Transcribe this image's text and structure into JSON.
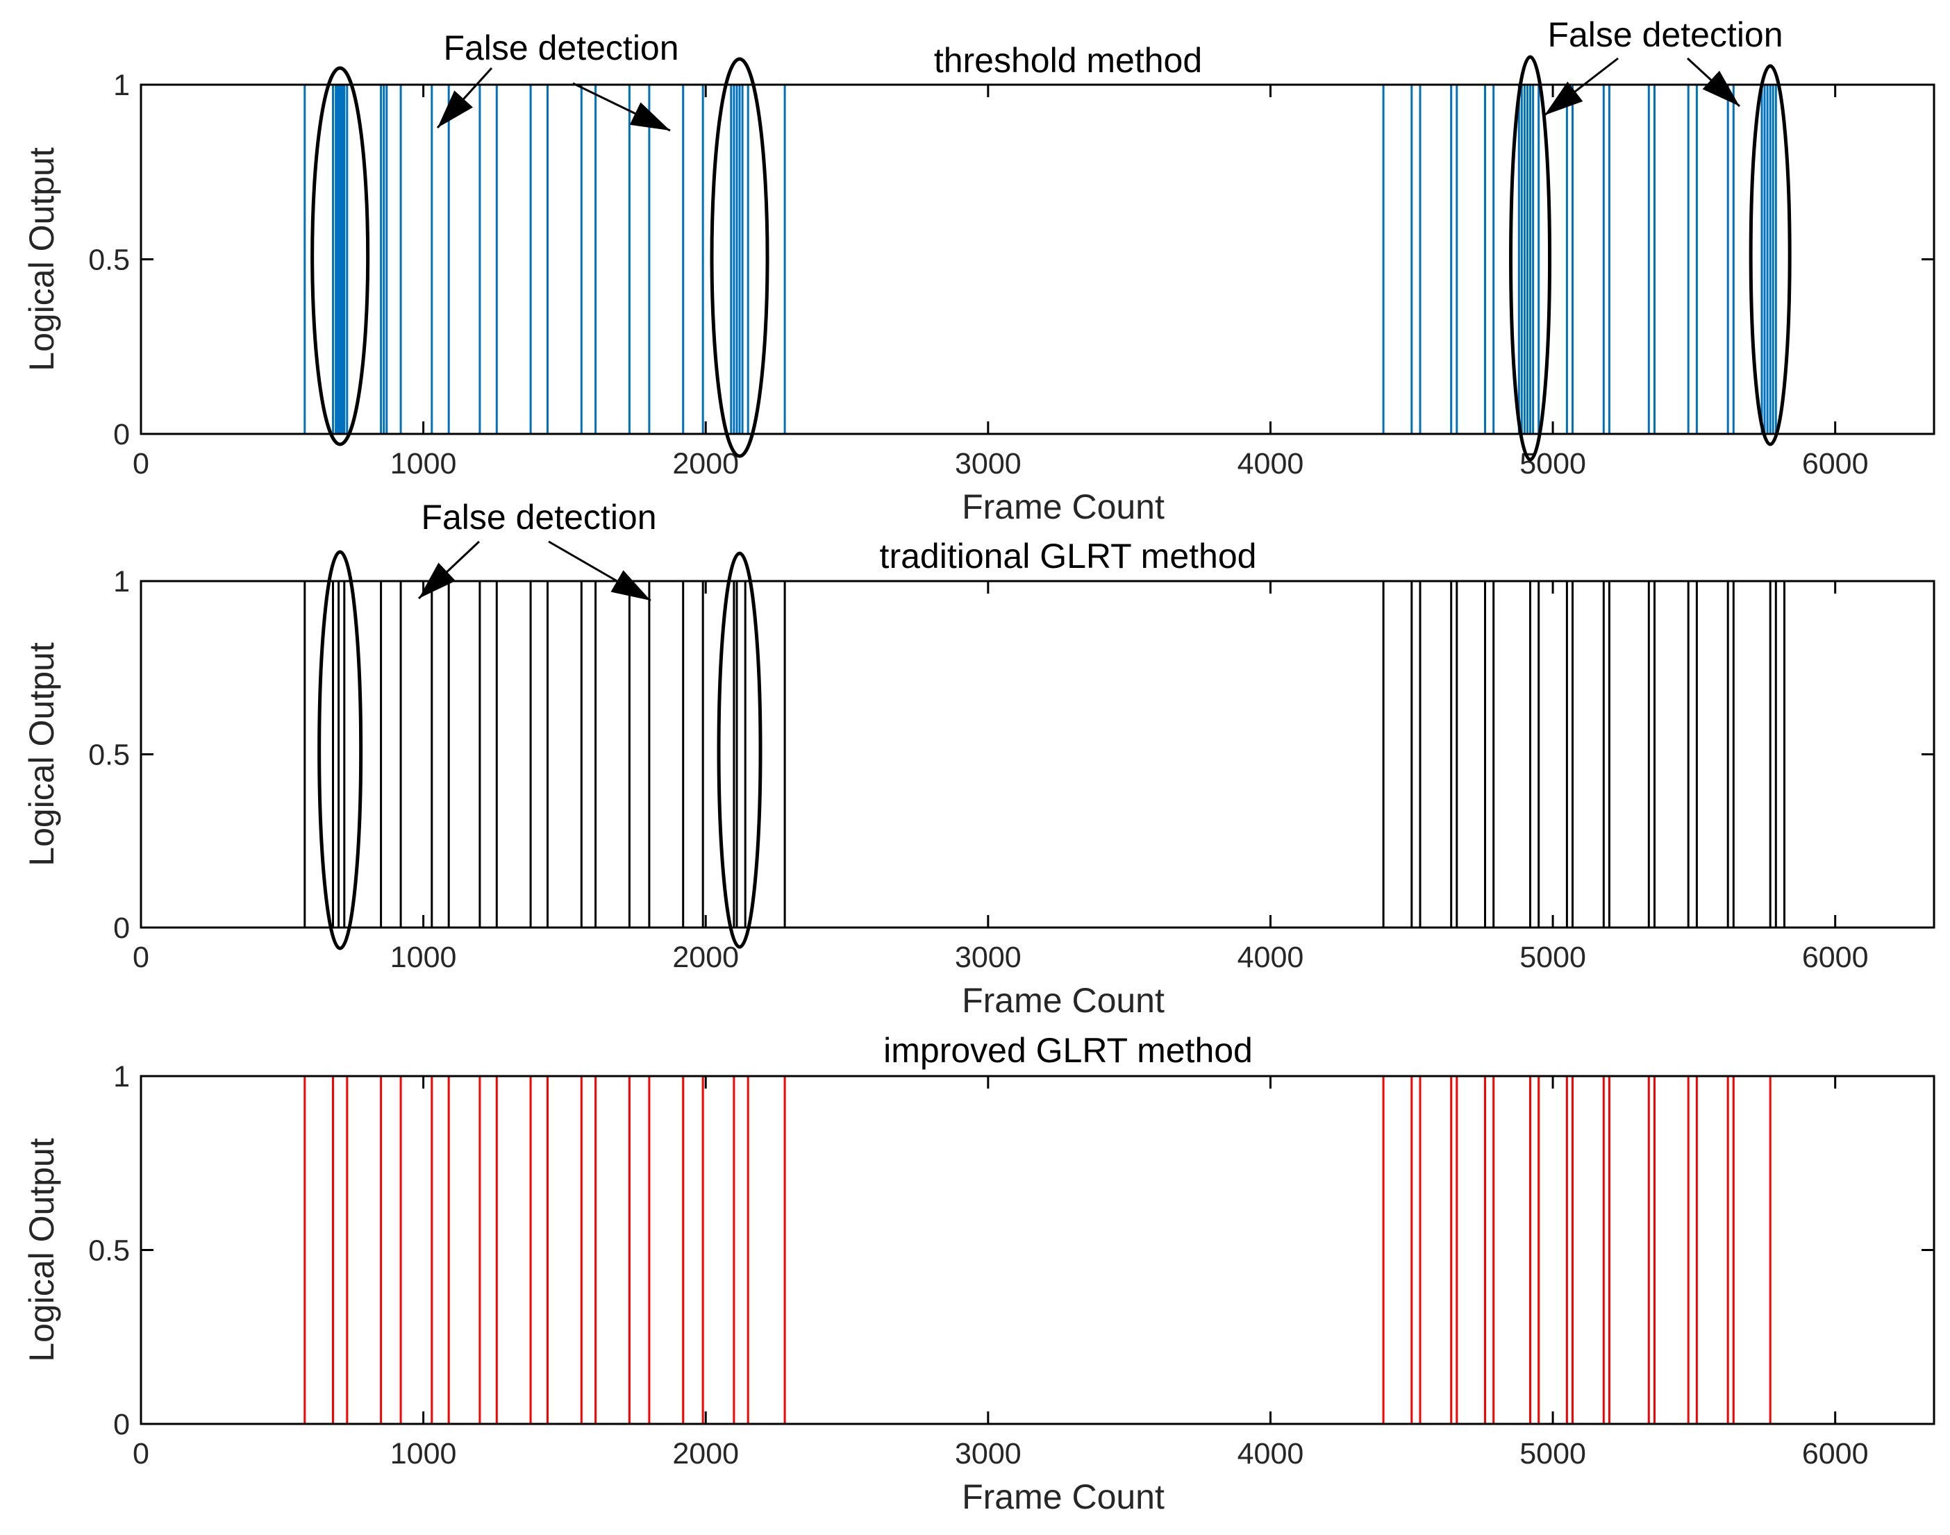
{
  "chart_data": [
    {
      "type": "line",
      "title": "threshold method",
      "xlabel": "Frame Count",
      "ylabel": "Logical Output",
      "xlim": [
        0,
        6350
      ],
      "ylim": [
        0,
        1
      ],
      "xticks": [
        0,
        1000,
        2000,
        3000,
        4000,
        5000,
        6000
      ],
      "yticks": [
        0,
        0.5,
        1
      ],
      "xtick_labels": [
        "0",
        "1000",
        "2000",
        "3000",
        "4000",
        "5000",
        "6000"
      ],
      "ytick_labels": [
        "0",
        "0.5",
        "1"
      ],
      "grid": false,
      "color": "#0072BD",
      "transitions": [
        580,
        680,
        690,
        695,
        700,
        705,
        710,
        715,
        720,
        730,
        850,
        860,
        870,
        920,
        1030,
        1090,
        1200,
        1260,
        1380,
        1440,
        1560,
        1610,
        1730,
        1800,
        1920,
        1990,
        2090,
        2100,
        2110,
        2120,
        2130,
        2150,
        2280,
        4400,
        4500,
        4530,
        4640,
        4660,
        4760,
        4790,
        4880,
        4890,
        4900,
        4910,
        4920,
        4930,
        4950,
        5050,
        5070,
        5180,
        5200,
        5340,
        5360,
        5480,
        5510,
        5620,
        5640,
        5740,
        5750,
        5760,
        5770,
        5780,
        5790
      ],
      "annotations": [
        {
          "text": "False detection",
          "x": 1380,
          "y": 1.1
        },
        {
          "text": "False detection",
          "x": 5590,
          "y": 1.13
        }
      ]
    },
    {
      "type": "line",
      "title": "traditional GLRT method",
      "xlabel": "Frame Count",
      "ylabel": "Logical Output",
      "xlim": [
        0,
        6350
      ],
      "ylim": [
        0,
        1
      ],
      "xticks": [
        0,
        1000,
        2000,
        3000,
        4000,
        5000,
        6000
      ],
      "yticks": [
        0,
        0.5,
        1
      ],
      "xtick_labels": [
        "0",
        "1000",
        "2000",
        "3000",
        "4000",
        "5000",
        "6000"
      ],
      "ytick_labels": [
        "0",
        "0.5",
        "1"
      ],
      "grid": false,
      "color": "#000000",
      "transitions": [
        580,
        680,
        700,
        720,
        850,
        920,
        1030,
        1090,
        1200,
        1260,
        1380,
        1440,
        1560,
        1610,
        1730,
        1800,
        1920,
        1990,
        2100,
        2110,
        2140,
        2280,
        4400,
        4500,
        4530,
        4640,
        4660,
        4760,
        4790,
        4920,
        4950,
        5050,
        5070,
        5180,
        5200,
        5340,
        5360,
        5480,
        5510,
        5620,
        5640,
        5770,
        5790,
        5820
      ],
      "annotations": [
        {
          "text": "False detection",
          "x": 1300,
          "y": 1.17
        }
      ]
    },
    {
      "type": "line",
      "title": "improved GLRT method",
      "xlabel": "Frame Count",
      "ylabel": "Logical Output",
      "xlim": [
        0,
        6350
      ],
      "ylim": [
        0,
        1
      ],
      "xticks": [
        0,
        1000,
        2000,
        3000,
        4000,
        5000,
        6000
      ],
      "yticks": [
        0,
        0.5,
        1
      ],
      "xtick_labels": [
        "0",
        "1000",
        "2000",
        "3000",
        "4000",
        "5000",
        "6000"
      ],
      "ytick_labels": [
        "0",
        "0.5",
        "1"
      ],
      "grid": false,
      "color": "#FF0000",
      "transitions": [
        580,
        680,
        730,
        850,
        920,
        1030,
        1090,
        1200,
        1260,
        1380,
        1440,
        1560,
        1610,
        1730,
        1800,
        1920,
        1990,
        2100,
        2150,
        2280,
        4400,
        4500,
        4530,
        4640,
        4660,
        4760,
        4790,
        4920,
        4950,
        5050,
        5070,
        5180,
        5200,
        5340,
        5360,
        5480,
        5510,
        5620,
        5640,
        5770
      ],
      "annotations": []
    }
  ]
}
